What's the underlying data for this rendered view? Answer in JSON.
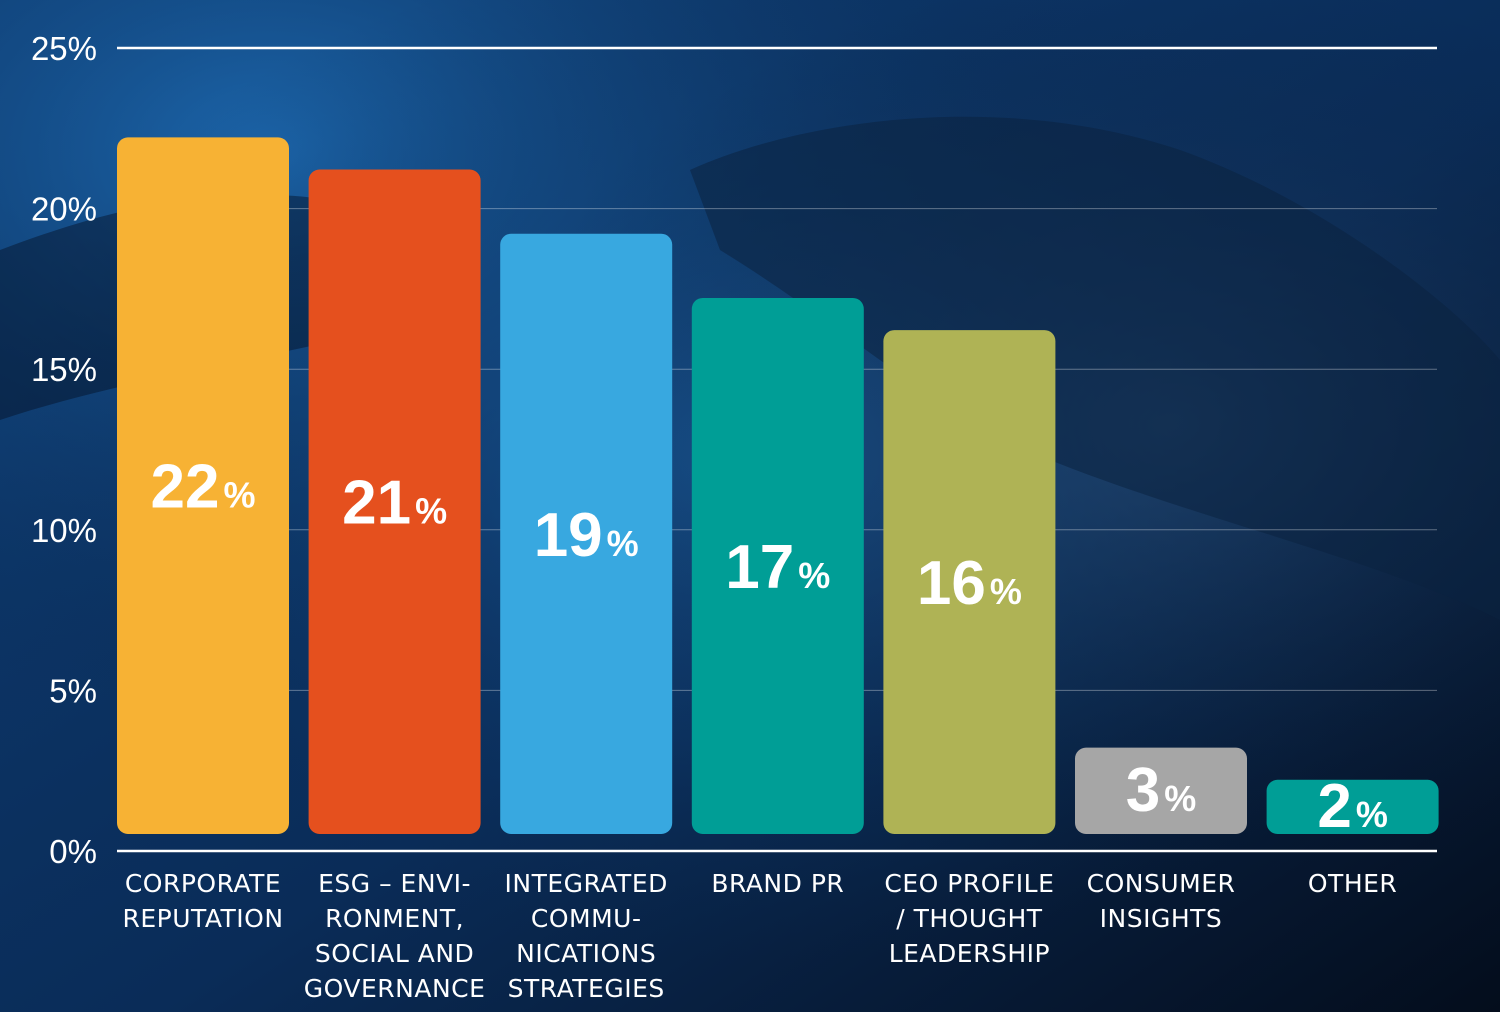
{
  "chart_data": {
    "type": "bar",
    "categories": [
      [
        "CORPORATE",
        "REPUTATION"
      ],
      [
        "ESG – ENVI-",
        "RONMENT,",
        "SOCIAL AND",
        "GOVERNANCE"
      ],
      [
        "INTEGRATED",
        "COMMU-",
        "NICATIONS",
        "STRATEGIES"
      ],
      [
        "BRAND PR"
      ],
      [
        "CEO PROFILE",
        "/ THOUGHT",
        "LEADERSHIP"
      ],
      [
        "CONSUMER",
        "INSIGHTS"
      ],
      [
        "OTHER"
      ]
    ],
    "values": [
      22,
      21,
      19,
      17,
      16,
      3,
      2
    ],
    "value_labels": [
      "22",
      "21",
      "19",
      "17",
      "16",
      "3",
      "2"
    ],
    "value_suffix": "%",
    "bar_colors": [
      "#F7B234",
      "#E5501E",
      "#38A8E0",
      "#009E96",
      "#AFB355",
      "#A6A6A6",
      "#009E96"
    ],
    "ylim": [
      0,
      25
    ],
    "yticks": [
      0,
      5,
      10,
      15,
      20,
      25
    ],
    "ytick_labels": [
      "0%",
      "5%",
      "10%",
      "15%",
      "20%",
      "25%"
    ],
    "grid": true,
    "title": "",
    "xlabel": "",
    "ylabel": ""
  }
}
